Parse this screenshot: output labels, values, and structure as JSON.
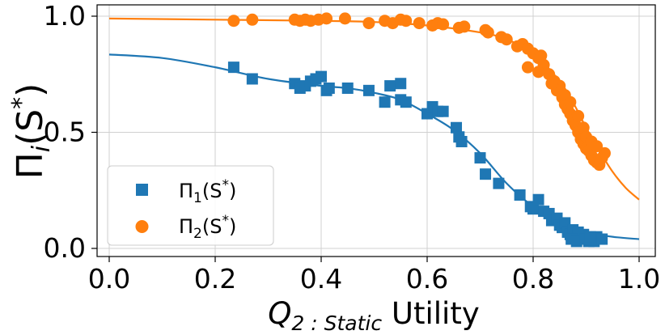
{
  "chart_data": {
    "type": "scatter",
    "title": "",
    "xlabel_main": "Q",
    "xlabel_sub": "2 : Static",
    "xlabel_rest": " Utility",
    "ylabel_main": "Π",
    "ylabel_sub": "i",
    "ylabel_rest": "(S",
    "ylabel_sup": "*",
    "ylabel_close": ")",
    "xlim": [
      0.0,
      1.0
    ],
    "ylim": [
      0.0,
      1.0
    ],
    "xticks": [
      0.0,
      0.2,
      0.4,
      0.6,
      0.8,
      1.0
    ],
    "xtick_labels": [
      "0.0",
      "0.2",
      "0.4",
      "0.6",
      "0.8",
      "1.0"
    ],
    "yticks": [
      0.0,
      0.5,
      1.0
    ],
    "ytick_labels": [
      "0.0",
      "0.5",
      "1.0"
    ],
    "grid": true,
    "legend_position": "lower-left",
    "series": [
      {
        "name": "Π1(S*)",
        "legend_main": "Π",
        "legend_sub": "1",
        "legend_rest": "(S",
        "legend_sup": "*",
        "legend_close": ")",
        "color": "#1f77b4",
        "marker": "square",
        "points": [
          [
            0.235,
            0.78
          ],
          [
            0.27,
            0.73
          ],
          [
            0.35,
            0.71
          ],
          [
            0.36,
            0.69
          ],
          [
            0.37,
            0.7
          ],
          [
            0.38,
            0.72
          ],
          [
            0.39,
            0.73
          ],
          [
            0.4,
            0.74
          ],
          [
            0.41,
            0.68
          ],
          [
            0.415,
            0.69
          ],
          [
            0.45,
            0.69
          ],
          [
            0.49,
            0.68
          ],
          [
            0.52,
            0.63
          ],
          [
            0.53,
            0.7
          ],
          [
            0.55,
            0.71
          ],
          [
            0.55,
            0.64
          ],
          [
            0.56,
            0.63
          ],
          [
            0.6,
            0.58
          ],
          [
            0.61,
            0.61
          ],
          [
            0.62,
            0.59
          ],
          [
            0.63,
            0.59
          ],
          [
            0.655,
            0.52
          ],
          [
            0.66,
            0.48
          ],
          [
            0.665,
            0.46
          ],
          [
            0.7,
            0.39
          ],
          [
            0.71,
            0.32
          ],
          [
            0.735,
            0.28
          ],
          [
            0.775,
            0.23
          ],
          [
            0.795,
            0.18
          ],
          [
            0.8,
            0.17
          ],
          [
            0.81,
            0.21
          ],
          [
            0.82,
            0.16
          ],
          [
            0.83,
            0.15
          ],
          [
            0.835,
            0.12
          ],
          [
            0.845,
            0.13
          ],
          [
            0.85,
            0.1
          ],
          [
            0.855,
            0.09
          ],
          [
            0.86,
            0.11
          ],
          [
            0.865,
            0.07
          ],
          [
            0.87,
            0.06
          ],
          [
            0.875,
            0.08
          ],
          [
            0.88,
            0.05
          ],
          [
            0.885,
            0.07
          ],
          [
            0.89,
            0.04
          ],
          [
            0.895,
            0.06
          ],
          [
            0.9,
            0.05
          ],
          [
            0.905,
            0.03
          ],
          [
            0.91,
            0.04
          ],
          [
            0.915,
            0.03
          ],
          [
            0.92,
            0.05
          ],
          [
            0.925,
            0.04
          ],
          [
            0.93,
            0.04
          ],
          [
            0.872,
            0.04
          ],
          [
            0.882,
            0.03
          ],
          [
            0.898,
            0.04
          ],
          [
            0.908,
            0.05
          ]
        ],
        "fit_curve": [
          [
            0.0,
            0.835
          ],
          [
            0.1,
            0.82
          ],
          [
            0.2,
            0.78
          ],
          [
            0.3,
            0.73
          ],
          [
            0.4,
            0.7
          ],
          [
            0.45,
            0.69
          ],
          [
            0.5,
            0.67
          ],
          [
            0.55,
            0.64
          ],
          [
            0.6,
            0.58
          ],
          [
            0.65,
            0.51
          ],
          [
            0.7,
            0.41
          ],
          [
            0.75,
            0.28
          ],
          [
            0.8,
            0.18
          ],
          [
            0.85,
            0.11
          ],
          [
            0.9,
            0.07
          ],
          [
            0.95,
            0.05
          ],
          [
            1.0,
            0.04
          ]
        ]
      },
      {
        "name": "Π2(S*)",
        "legend_main": "Π",
        "legend_sub": "2",
        "legend_rest": "(S",
        "legend_sup": "*",
        "legend_close": ")",
        "color": "#ff7f0e",
        "marker": "circle",
        "points": [
          [
            0.235,
            0.98
          ],
          [
            0.27,
            0.985
          ],
          [
            0.35,
            0.985
          ],
          [
            0.36,
            0.98
          ],
          [
            0.37,
            0.985
          ],
          [
            0.38,
            0.98
          ],
          [
            0.395,
            0.985
          ],
          [
            0.41,
            0.99
          ],
          [
            0.445,
            0.99
          ],
          [
            0.49,
            0.97
          ],
          [
            0.52,
            0.98
          ],
          [
            0.535,
            0.97
          ],
          [
            0.55,
            0.985
          ],
          [
            0.56,
            0.98
          ],
          [
            0.585,
            0.97
          ],
          [
            0.61,
            0.96
          ],
          [
            0.62,
            0.97
          ],
          [
            0.63,
            0.965
          ],
          [
            0.66,
            0.95
          ],
          [
            0.67,
            0.955
          ],
          [
            0.71,
            0.94
          ],
          [
            0.715,
            0.93
          ],
          [
            0.74,
            0.91
          ],
          [
            0.75,
            0.9
          ],
          [
            0.77,
            0.87
          ],
          [
            0.78,
            0.88
          ],
          [
            0.79,
            0.86
          ],
          [
            0.8,
            0.84
          ],
          [
            0.81,
            0.82
          ],
          [
            0.82,
            0.79
          ],
          [
            0.83,
            0.75
          ],
          [
            0.84,
            0.72
          ],
          [
            0.85,
            0.7
          ],
          [
            0.855,
            0.65
          ],
          [
            0.86,
            0.62
          ],
          [
            0.865,
            0.6
          ],
          [
            0.87,
            0.58
          ],
          [
            0.875,
            0.55
          ],
          [
            0.88,
            0.53
          ],
          [
            0.885,
            0.5
          ],
          [
            0.89,
            0.47
          ],
          [
            0.895,
            0.45
          ],
          [
            0.9,
            0.43
          ],
          [
            0.905,
            0.42
          ],
          [
            0.91,
            0.4
          ],
          [
            0.915,
            0.38
          ],
          [
            0.92,
            0.37
          ],
          [
            0.925,
            0.36
          ],
          [
            0.93,
            0.39
          ],
          [
            0.935,
            0.41
          ],
          [
            0.885,
            0.57
          ],
          [
            0.895,
            0.52
          ],
          [
            0.9,
            0.48
          ],
          [
            0.91,
            0.46
          ],
          [
            0.92,
            0.44
          ],
          [
            0.86,
            0.66
          ],
          [
            0.87,
            0.63
          ],
          [
            0.845,
            0.68
          ],
          [
            0.835,
            0.71
          ],
          [
            0.81,
            0.76
          ],
          [
            0.79,
            0.78
          ],
          [
            0.815,
            0.83
          ]
        ],
        "fit_curve": [
          [
            0.0,
            0.99
          ],
          [
            0.2,
            0.985
          ],
          [
            0.4,
            0.98
          ],
          [
            0.5,
            0.975
          ],
          [
            0.6,
            0.96
          ],
          [
            0.7,
            0.93
          ],
          [
            0.75,
            0.9
          ],
          [
            0.8,
            0.84
          ],
          [
            0.85,
            0.72
          ],
          [
            0.875,
            0.63
          ],
          [
            0.9,
            0.52
          ],
          [
            0.925,
            0.42
          ],
          [
            0.95,
            0.33
          ],
          [
            0.975,
            0.26
          ],
          [
            1.0,
            0.21
          ]
        ]
      }
    ]
  }
}
